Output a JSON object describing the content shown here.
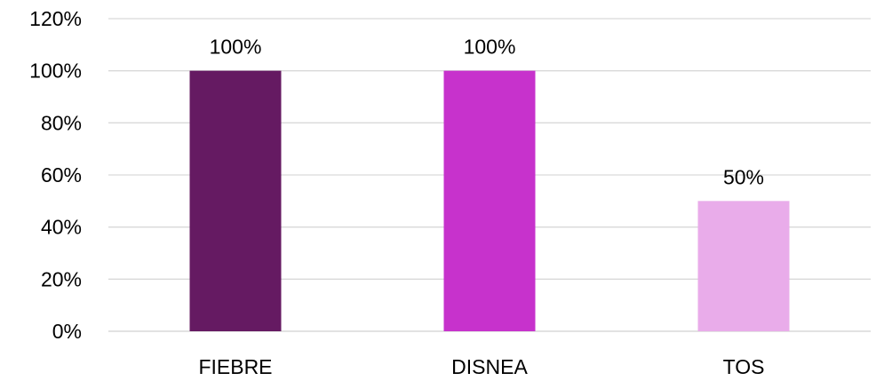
{
  "chart_data": {
    "type": "bar",
    "categories": [
      "FIEBRE",
      "DISNEA",
      "TOS"
    ],
    "values": [
      100,
      100,
      50
    ],
    "data_labels": [
      "100%",
      "100%",
      "50%"
    ],
    "colors": [
      "#651a62",
      "#c732cc",
      "#e9acea"
    ],
    "y_ticks": [
      0,
      20,
      40,
      60,
      80,
      100,
      120
    ],
    "y_tick_labels": [
      "0%",
      "20%",
      "40%",
      "60%",
      "80%",
      "100%",
      "120%"
    ],
    "ylim": [
      0,
      120
    ],
    "grid": true,
    "legend": "none"
  }
}
